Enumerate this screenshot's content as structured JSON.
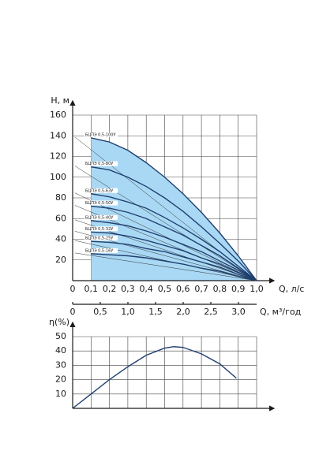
{
  "chart_data": [
    {
      "type": "line",
      "ylabel": "H, м",
      "xlabel": "Q, л/с",
      "x2label": "Q, м³/год",
      "x": [
        0.1,
        0.2,
        0.3,
        0.4,
        0.5,
        0.6,
        0.7,
        0.8,
        0.9,
        1.0
      ],
      "series": [
        {
          "name": "БЦПЭ 0,5-100У",
          "color": "#1f3f6e",
          "values": [
            138,
            134,
            126,
            114,
            100,
            84,
            66,
            46,
            24,
            0
          ]
        },
        {
          "name": "БЦПЭ 0,5-80У",
          "color": "#1f3f6e",
          "values": [
            110,
            107,
            100,
            91,
            80,
            67,
            52,
            36,
            19,
            0
          ]
        },
        {
          "name": "БЦПЭ 0,5-63У",
          "color": "#1f3f6e",
          "values": [
            84,
            81,
            76,
            70,
            61,
            51,
            40,
            28,
            14,
            0
          ]
        },
        {
          "name": "БЦПЭ 0,5-50У",
          "color": "#1f3f6e",
          "values": [
            72,
            70,
            66,
            60,
            52,
            44,
            34,
            24,
            12,
            0
          ]
        },
        {
          "name": "БЦПЭ 0,5-40У",
          "color": "#1f3f6e",
          "values": [
            58,
            56,
            53,
            48,
            42,
            35,
            28,
            19,
            10,
            0
          ]
        },
        {
          "name": "БЦПЭ 0,5-32У",
          "color": "#1f3f6e",
          "values": [
            47,
            46,
            43,
            39,
            34,
            29,
            22,
            16,
            8,
            0
          ]
        },
        {
          "name": "БЦПЭ 0,5-25У",
          "color": "#1f3f6e",
          "values": [
            38,
            37,
            35,
            31,
            28,
            23,
            18,
            13,
            6,
            0
          ]
        },
        {
          "name": "БЦПЭ 0,5-16У",
          "color": "#1f3f6e",
          "values": [
            26,
            25,
            24,
            22,
            19,
            16,
            12,
            9,
            4,
            0
          ]
        }
      ],
      "fill_color": "#a9d8f4",
      "xlim": [
        0,
        1.0
      ],
      "ylim": [
        0,
        160
      ],
      "xticks": [
        0,
        {
          "value": 0.1,
          "label": "0,1"
        },
        {
          "value": 0.2,
          "label": "0,2"
        },
        {
          "value": 0.3,
          "label": "0,3"
        },
        {
          "value": 0.4,
          "label": "0,4"
        },
        {
          "value": 0.5,
          "label": "0,5"
        },
        {
          "value": 0.6,
          "label": "0,6"
        },
        {
          "value": 0.7,
          "label": "0,7"
        },
        {
          "value": 0.8,
          "label": "0,8"
        },
        {
          "value": 0.9,
          "label": "0,9"
        },
        {
          "value": 1.0,
          "label": "1,0"
        }
      ],
      "yticks": [
        20,
        40,
        60,
        80,
        100,
        120,
        140,
        160
      ],
      "x2lim": [
        0,
        3.3
      ],
      "x2ticks": [
        0,
        {
          "value": 0.5,
          "label": "0,5"
        },
        {
          "value": 1.0,
          "label": "1,0"
        },
        {
          "value": 1.5,
          "label": "1,5"
        },
        {
          "value": 2.0,
          "label": "2,0"
        },
        {
          "value": 2.5,
          "label": "2,5"
        },
        {
          "value": 3.0,
          "label": "3,0"
        }
      ],
      "grid": true
    },
    {
      "type": "line",
      "ylabel": "η(%)",
      "color": "#1f3f6e",
      "x": [
        0,
        0.1,
        0.2,
        0.3,
        0.4,
        0.5,
        0.55,
        0.6,
        0.7,
        0.8,
        0.89
      ],
      "values": [
        0,
        10,
        20,
        29,
        37,
        42,
        43,
        42.5,
        38,
        31,
        21
      ],
      "xlim": [
        0,
        1.0
      ],
      "ylim": [
        0,
        50
      ],
      "yticks": [
        10,
        20,
        30,
        40,
        50
      ],
      "grid": true
    }
  ]
}
